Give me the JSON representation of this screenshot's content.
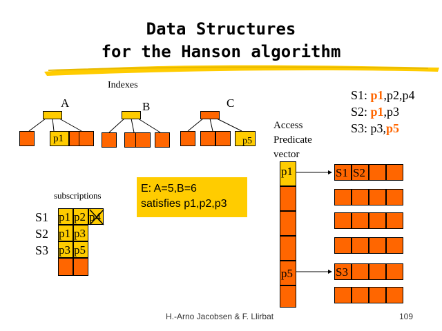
{
  "title": {
    "line1": "Data Structures",
    "line2": "for the Hanson algorithm"
  },
  "indexes_label": "Indexes",
  "trees": [
    {
      "name": "A",
      "leaf_label": "p1"
    },
    {
      "name": "B"
    },
    {
      "name": "C",
      "leaf_label": "p5"
    }
  ],
  "subscriptions_label": "subscriptions",
  "subscription_rows": [
    {
      "name": "S1",
      "cells": [
        "p1",
        "p2",
        "p4"
      ]
    },
    {
      "name": "S2",
      "cells": [
        "p1",
        "p3"
      ]
    },
    {
      "name": "S3",
      "cells": [
        "p3",
        "p5"
      ]
    }
  ],
  "event_box": {
    "line1": "E: A=5,B=6",
    "line2": "satisfies p1,p2,p3"
  },
  "access_vector_label": {
    "line1": "Access",
    "line2": "Predicate",
    "line3": "vector"
  },
  "vector_labels": {
    "top": "p1",
    "bottom": "p5"
  },
  "legend": [
    {
      "name": "S1:",
      "hl": "p1",
      "rest": ",p2,p4"
    },
    {
      "name": "S2:",
      "hl": "p1",
      "rest": ",p3"
    },
    {
      "name": "S3:",
      "pre": "p3,",
      "hl": "p5"
    }
  ],
  "list_rows": [
    {
      "labels": [
        "S1",
        "S2"
      ]
    },
    {
      "labels": [
        "S3"
      ]
    }
  ],
  "footer": {
    "author": "H.-Arno Jacobsen & F. Llirbat",
    "page": "109"
  },
  "colors": {
    "accent_orange": "#ff6600",
    "highlight_yellow": "#ffcc00"
  }
}
